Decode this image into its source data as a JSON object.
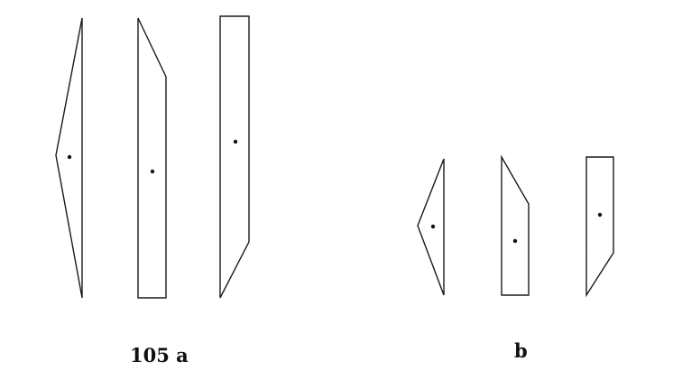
{
  "figures": [
    {
      "label": "105 a",
      "shapes": [
        "triangle",
        "trapezoid-cut-top",
        "trapezoid-cut-bottom"
      ]
    },
    {
      "label": "b",
      "shapes": [
        "triangle",
        "trapezoid-cut-top",
        "trapezoid-cut-bottom"
      ]
    }
  ],
  "colors": {
    "stroke": "#1a1a1a",
    "background": "#ffffff"
  }
}
